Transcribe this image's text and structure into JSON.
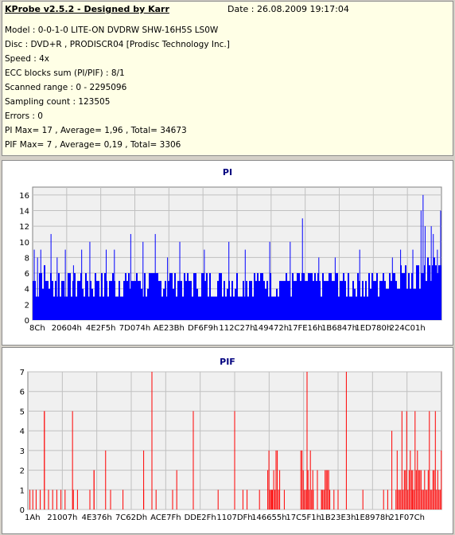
{
  "info": {
    "app_title": "KProbe v2.5.2 - Designed by Karr",
    "date": "Date : 26.08.2009 19:17:04",
    "lines": [
      "Model : 0-0-1-0 LITE-ON DVDRW SHW-16H5S  LS0W",
      "Disc : DVD+R , PRODISCR04 [Prodisc Technology Inc.]",
      "Speed : 4x",
      "ECC blocks sum (PI/PIF) : 8/1",
      "Scanned range : 0 - 2295096",
      "Sampling count : 123505",
      "Errors : 0",
      "PI Max= 17 , Average= 1,96 , Total= 34673",
      "PIF Max= 7 , Average= 0,19 , Total= 3306"
    ]
  },
  "chart_data": [
    {
      "type": "bar",
      "title": "PI",
      "color": "#0000ff",
      "ylim": [
        0,
        17
      ],
      "y_ticks": [
        "0",
        "2",
        "4",
        "6",
        "8",
        "10",
        "12",
        "14",
        "16"
      ],
      "x_ticks": [
        "8Ch",
        "20604h",
        "4E2F5h",
        "7D074h",
        "AE23Bh",
        "DF6F9h",
        "112C27h",
        "149472h",
        "17FE16h",
        "1B6847h",
        "1ED780h",
        "224C01h"
      ],
      "grid": true,
      "baseline": [
        4,
        5,
        4,
        4,
        4,
        4,
        4,
        4,
        4,
        4,
        4,
        4,
        4,
        4,
        4,
        4,
        4,
        4,
        4,
        4,
        4,
        4,
        4,
        4,
        4,
        4,
        4,
        4,
        4,
        4,
        4,
        4,
        4,
        4,
        4,
        4,
        4,
        4,
        4,
        4,
        4,
        4,
        4,
        4,
        4,
        4,
        4,
        4,
        4,
        4,
        4,
        4,
        4,
        4,
        4,
        4,
        4,
        5,
        5,
        5,
        5,
        5,
        5,
        6,
        6,
        5
      ],
      "spikes": [
        {
          "x": 0.004,
          "y": 9
        },
        {
          "x": 0.012,
          "y": 8
        },
        {
          "x": 0.02,
          "y": 9
        },
        {
          "x": 0.03,
          "y": 7
        },
        {
          "x": 0.045,
          "y": 11
        },
        {
          "x": 0.06,
          "y": 8
        },
        {
          "x": 0.08,
          "y": 9
        },
        {
          "x": 0.1,
          "y": 7
        },
        {
          "x": 0.12,
          "y": 9
        },
        {
          "x": 0.14,
          "y": 10
        },
        {
          "x": 0.18,
          "y": 9
        },
        {
          "x": 0.2,
          "y": 9
        },
        {
          "x": 0.24,
          "y": 11
        },
        {
          "x": 0.27,
          "y": 10
        },
        {
          "x": 0.3,
          "y": 11
        },
        {
          "x": 0.33,
          "y": 8
        },
        {
          "x": 0.36,
          "y": 10
        },
        {
          "x": 0.42,
          "y": 9
        },
        {
          "x": 0.48,
          "y": 10
        },
        {
          "x": 0.52,
          "y": 9
        },
        {
          "x": 0.58,
          "y": 10
        },
        {
          "x": 0.63,
          "y": 10
        },
        {
          "x": 0.66,
          "y": 13
        },
        {
          "x": 0.7,
          "y": 8
        },
        {
          "x": 0.74,
          "y": 8
        },
        {
          "x": 0.8,
          "y": 9
        },
        {
          "x": 0.88,
          "y": 8
        },
        {
          "x": 0.9,
          "y": 9
        },
        {
          "x": 0.93,
          "y": 9
        },
        {
          "x": 0.95,
          "y": 14
        },
        {
          "x": 0.955,
          "y": 16
        },
        {
          "x": 0.96,
          "y": 12
        },
        {
          "x": 0.975,
          "y": 12
        },
        {
          "x": 0.98,
          "y": 11
        },
        {
          "x": 0.99,
          "y": 9
        },
        {
          "x": 0.998,
          "y": 14
        }
      ]
    },
    {
      "type": "bar",
      "title": "PIF",
      "color": "#ff0000",
      "ylim": [
        0,
        7
      ],
      "y_ticks": [
        "0",
        "1",
        "2",
        "3",
        "4",
        "5",
        "6",
        "7"
      ],
      "x_ticks": [
        "1Ah",
        "21007h",
        "4E376h",
        "7C62Dh",
        "ACE7Fh",
        "DDE2Fh",
        "1107DFh",
        "146655h",
        "17C5F1h",
        "1B23E3h",
        "1E8978h",
        "21F07Ch"
      ],
      "grid": true,
      "base_series": [
        {
          "x": 0.005,
          "y": 1
        },
        {
          "x": 0.012,
          "y": 1
        },
        {
          "x": 0.02,
          "y": 1
        },
        {
          "x": 0.03,
          "y": 1
        },
        {
          "x": 0.04,
          "y": 5
        },
        {
          "x": 0.05,
          "y": 1
        },
        {
          "x": 0.06,
          "y": 1
        },
        {
          "x": 0.07,
          "y": 1
        },
        {
          "x": 0.08,
          "y": 1
        },
        {
          "x": 0.09,
          "y": 1
        },
        {
          "x": 0.11,
          "y": 1
        },
        {
          "x": 0.12,
          "y": 1
        },
        {
          "x": 0.15,
          "y": 1
        },
        {
          "x": 0.16,
          "y": 2
        },
        {
          "x": 0.2,
          "y": 1
        },
        {
          "x": 0.23,
          "y": 1
        },
        {
          "x": 0.28,
          "y": 1
        },
        {
          "x": 0.31,
          "y": 1
        },
        {
          "x": 0.35,
          "y": 1
        },
        {
          "x": 0.36,
          "y": 2
        },
        {
          "x": 0.4,
          "y": 1
        },
        {
          "x": 0.46,
          "y": 1
        },
        {
          "x": 0.5,
          "y": 1
        },
        {
          "x": 0.53,
          "y": 1
        },
        {
          "x": 0.56,
          "y": 1
        },
        {
          "x": 0.59,
          "y": 1
        },
        {
          "x": 0.6,
          "y": 1
        },
        {
          "x": 0.62,
          "y": 1
        },
        {
          "x": 0.69,
          "y": 1
        },
        {
          "x": 0.7,
          "y": 2
        },
        {
          "x": 0.71,
          "y": 1
        },
        {
          "x": 0.73,
          "y": 1
        },
        {
          "x": 0.75,
          "y": 1
        },
        {
          "x": 0.81,
          "y": 1
        },
        {
          "x": 0.86,
          "y": 1
        },
        {
          "x": 0.87,
          "y": 1
        }
      ],
      "spikes": [
        {
          "x": 0.04,
          "y": 5
        },
        {
          "x": 0.108,
          "y": 5
        },
        {
          "x": 0.16,
          "y": 2
        },
        {
          "x": 0.188,
          "y": 3
        },
        {
          "x": 0.28,
          "y": 3
        },
        {
          "x": 0.3,
          "y": 7
        },
        {
          "x": 0.4,
          "y": 5
        },
        {
          "x": 0.5,
          "y": 5
        },
        {
          "x": 0.52,
          "y": 1
        },
        {
          "x": 0.6,
          "y": 3
        },
        {
          "x": 0.675,
          "y": 7
        },
        {
          "x": 0.7,
          "y": 2
        },
        {
          "x": 0.74,
          "y": 1
        },
        {
          "x": 0.77,
          "y": 7
        },
        {
          "x": 0.88,
          "y": 4
        },
        {
          "x": 0.93,
          "y": 1
        }
      ],
      "clusters": [
        {
          "from": 0.58,
          "to": 0.61,
          "y": 2,
          "peak": 3
        },
        {
          "from": 0.66,
          "to": 0.69,
          "y": 2,
          "peak": 3
        },
        {
          "from": 0.71,
          "to": 0.73,
          "y": 2,
          "peak": 2
        },
        {
          "from": 0.89,
          "to": 1.0,
          "y": 2,
          "peak": 5
        }
      ]
    }
  ]
}
